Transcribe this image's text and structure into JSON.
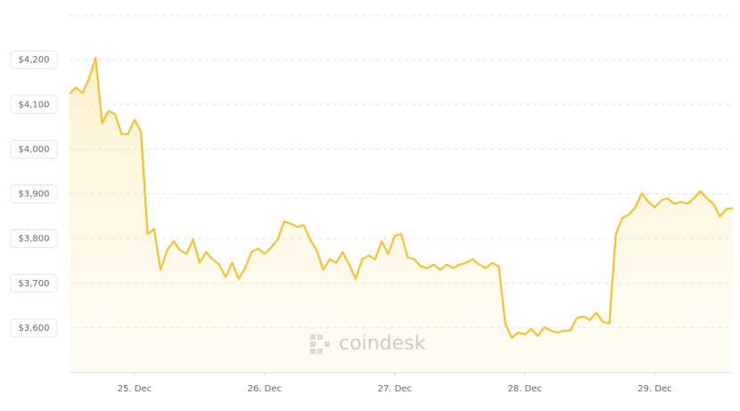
{
  "chart_data": {
    "type": "area",
    "watermark": "coindesk",
    "color": "#f2c230",
    "grid": true,
    "values": [
      4124,
      4138,
      4126,
      4158,
      4205,
      4058,
      4086,
      4078,
      4034,
      4034,
      4066,
      4038,
      3810,
      3822,
      3730,
      3774,
      3794,
      3774,
      3766,
      3798,
      3746,
      3770,
      3754,
      3742,
      3714,
      3746,
      3710,
      3734,
      3770,
      3778,
      3766,
      3780,
      3798,
      3838,
      3834,
      3826,
      3830,
      3798,
      3774,
      3730,
      3754,
      3746,
      3770,
      3742,
      3710,
      3754,
      3762,
      3754,
      3794,
      3766,
      3806,
      3810,
      3758,
      3754,
      3738,
      3734,
      3742,
      3730,
      3742,
      3734,
      3742,
      3746,
      3754,
      3742,
      3734,
      3746,
      3738,
      3610,
      3578,
      3590,
      3586,
      3598,
      3582,
      3602,
      3594,
      3590,
      3594,
      3594,
      3622,
      3626,
      3618,
      3634,
      3614,
      3610,
      3810,
      3846,
      3854,
      3870,
      3902,
      3882,
      3870,
      3886,
      3890,
      3878,
      3882,
      3878,
      3890,
      3906,
      3890,
      3878,
      3850,
      3866,
      3868
    ],
    "xlim": [
      0,
      102
    ],
    "xticks": [
      {
        "value": 10,
        "label": "25. Dec"
      },
      {
        "value": 30,
        "label": "26. Dec"
      },
      {
        "value": 50,
        "label": "27. Dec"
      },
      {
        "value": 70,
        "label": "28. Dec"
      },
      {
        "value": 90,
        "label": "29. Dec"
      }
    ],
    "ylim": [
      3500,
      4300
    ],
    "yticks": [
      {
        "value": 3600,
        "label": "$3,600"
      },
      {
        "value": 3700,
        "label": "$3,700"
      },
      {
        "value": 3800,
        "label": "$3,800"
      },
      {
        "value": 3900,
        "label": "$3,900"
      },
      {
        "value": 4000,
        "label": "$4,000"
      },
      {
        "value": 4100,
        "label": "$4,100"
      },
      {
        "value": 4200,
        "label": "$4,200"
      }
    ]
  }
}
